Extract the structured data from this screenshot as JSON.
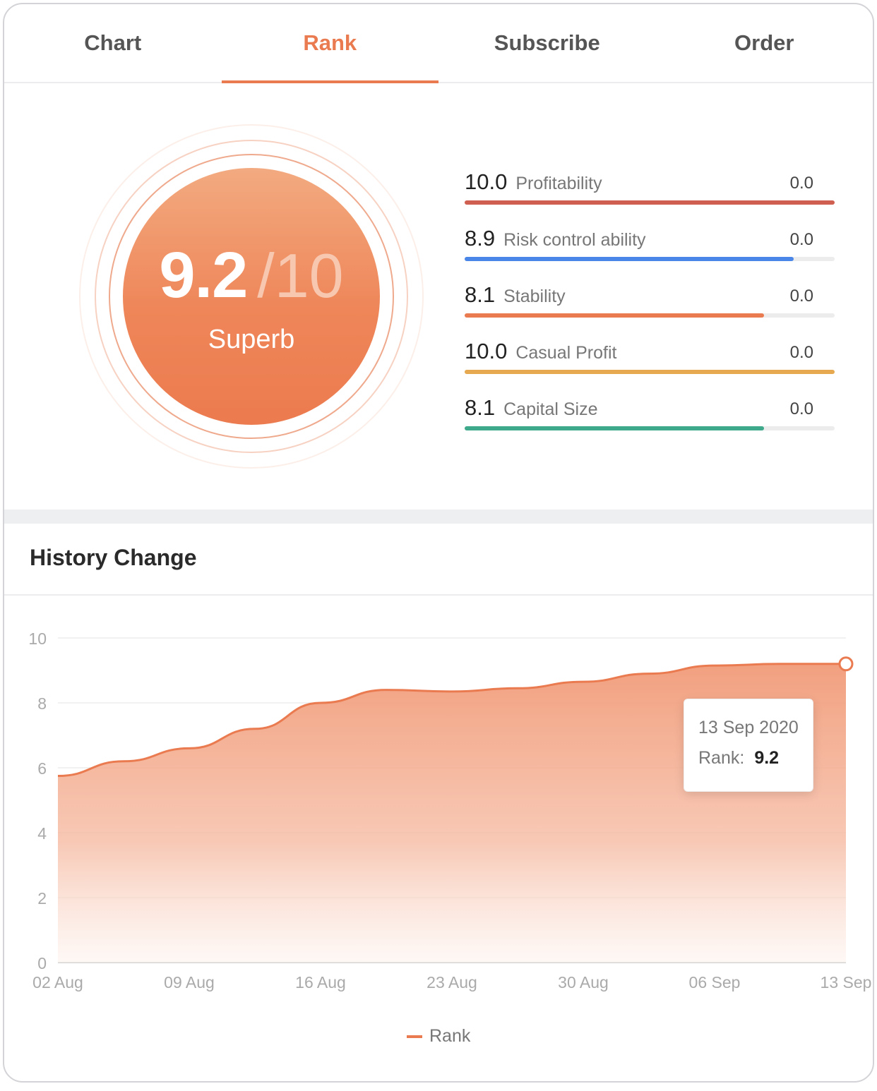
{
  "tabs": [
    {
      "label": "Chart",
      "active": false
    },
    {
      "label": "Rank",
      "active": true
    },
    {
      "label": "Subscribe",
      "active": false
    },
    {
      "label": "Order",
      "active": false
    }
  ],
  "score": {
    "value": "9.2",
    "max": "/10",
    "label": "Superb"
  },
  "metrics": [
    {
      "value": "10.0",
      "name": "Profitability",
      "right": "0.0",
      "fraction": 1.0,
      "color": "#cf5f50"
    },
    {
      "value": "8.9",
      "name": "Risk control ability",
      "right": "0.0",
      "fraction": 0.89,
      "color": "#4a86e8"
    },
    {
      "value": "8.1",
      "name": "Stability",
      "right": "0.0",
      "fraction": 0.81,
      "color": "#ea7b50"
    },
    {
      "value": "10.0",
      "name": "Casual Profit",
      "right": "0.0",
      "fraction": 1.0,
      "color": "#e6a94f"
    },
    {
      "value": "8.1",
      "name": "Capital Size",
      "right": "0.0",
      "fraction": 0.81,
      "color": "#3fa98b"
    }
  ],
  "history": {
    "title": "History Change"
  },
  "chart_data": {
    "type": "area",
    "x": [
      "02 Aug",
      "09 Aug",
      "16 Aug",
      "23 Aug",
      "30 Aug",
      "06 Sep",
      "13 Sep"
    ],
    "series": [
      {
        "name": "Rank",
        "color": "#ea7b50",
        "points": [
          {
            "x": 0,
            "y": 5.75
          },
          {
            "x": 0.5,
            "y": 6.2
          },
          {
            "x": 1,
            "y": 6.6
          },
          {
            "x": 1.5,
            "y": 7.2
          },
          {
            "x": 2,
            "y": 8.0
          },
          {
            "x": 2.5,
            "y": 8.4
          },
          {
            "x": 3,
            "y": 8.35
          },
          {
            "x": 3.5,
            "y": 8.45
          },
          {
            "x": 4,
            "y": 8.65
          },
          {
            "x": 4.5,
            "y": 8.9
          },
          {
            "x": 5,
            "y": 9.15
          },
          {
            "x": 5.5,
            "y": 9.2
          },
          {
            "x": 6,
            "y": 9.2
          }
        ]
      }
    ],
    "yticks": [
      0,
      2,
      4,
      6,
      8,
      10
    ],
    "ylim": [
      0,
      10
    ],
    "legend_position": "bottom-center",
    "grid": true,
    "tooltip": {
      "date": "13 Sep 2020",
      "label": "Rank:",
      "value": "9.2"
    }
  }
}
